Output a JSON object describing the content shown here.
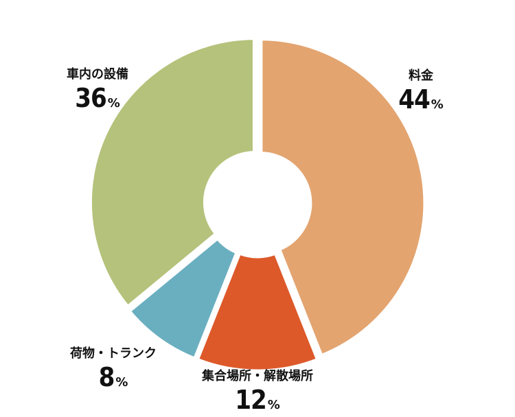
{
  "chart_data": {
    "type": "pie",
    "donut": true,
    "unit": "%",
    "slices": [
      {
        "label": "料金",
        "value": 44,
        "color": "#e3a470"
      },
      {
        "label": "集合場所・解散場所",
        "value": 12,
        "color": "#dd592a"
      },
      {
        "label": "荷物・トランク",
        "value": 8,
        "color": "#6aafc0"
      },
      {
        "label": "車内の設備",
        "value": 36,
        "color": "#b5c27b"
      }
    ]
  }
}
